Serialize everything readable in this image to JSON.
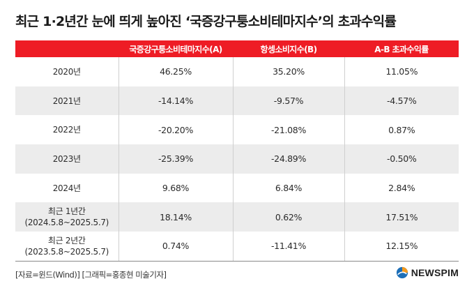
{
  "title": "최근 1·2년간 눈에 띄게 높아진 ‘국증강구퉁소비테마지수’의 초과수익률",
  "table": {
    "headers": [
      "",
      "국증강구퉁소비테마지수(A)",
      "항셍소비지수(B)",
      "A-B 초과수익률"
    ],
    "rows": [
      {
        "label": "2020년",
        "label2": "",
        "a": "46.25%",
        "b": "35.20%",
        "diff": "11.05%"
      },
      {
        "label": "2021년",
        "label2": "",
        "a": "-14.14%",
        "b": "-9.57%",
        "diff": "-4.57%"
      },
      {
        "label": "2022년",
        "label2": "",
        "a": "-20.20%",
        "b": "-21.08%",
        "diff": "0.87%"
      },
      {
        "label": "2023년",
        "label2": "",
        "a": "-25.39%",
        "b": "-24.89%",
        "diff": "-0.50%"
      },
      {
        "label": "2024년",
        "label2": "",
        "a": "9.68%",
        "b": "6.84%",
        "diff": "2.84%"
      },
      {
        "label": "최근 1년간",
        "label2": "(2024.5.8~2025.5.7)",
        "a": "18.14%",
        "b": "0.62%",
        "diff": "17.51%"
      },
      {
        "label": "최근 2년간",
        "label2": "(2023.5.8~2025.5.7)",
        "a": "0.74%",
        "b": "-11.41%",
        "diff": "12.15%"
      }
    ]
  },
  "source": "[자료=윈드(Wind)] [그래픽=홍종현 미술기자]",
  "logo": {
    "text": "NEWSPIM",
    "icon": "newspim-globe-icon",
    "color_blue": "#1d6fb8",
    "color_orange": "#f39a1e"
  },
  "colors": {
    "header_bg": "#ee1c25",
    "stripe_bg": "#ececec"
  }
}
